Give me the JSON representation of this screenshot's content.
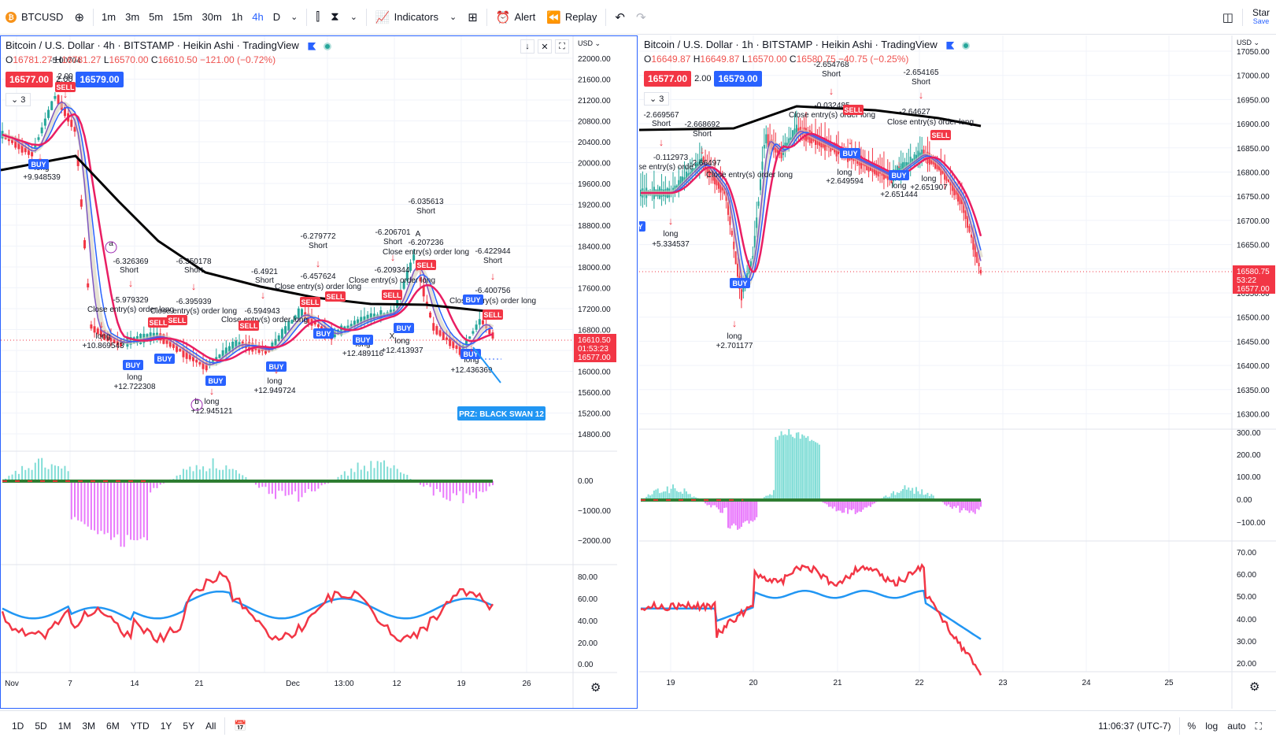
{
  "toolbar": {
    "symbol": "BTCUSD",
    "timeframes": [
      "1m",
      "3m",
      "5m",
      "15m",
      "30m",
      "1h",
      "4h",
      "D"
    ],
    "active_timeframe": "4h",
    "indicators_label": "Indicators",
    "alert_label": "Alert",
    "replay_label": "Replay",
    "star_label": "Star",
    "save_label": "Save"
  },
  "left_pane": {
    "title": "Bitcoin / U.S. Dollar · 4h · BITSTAMP · Heikin Ashi · TradingView",
    "ohlc": {
      "o_label": "O",
      "o": "16781.27",
      "h_label": "H",
      "h": "16781.27",
      "l_label": "L",
      "l": "16570.00",
      "c_label": "C",
      "c": "16610.50",
      "change": "−121.00 (−0.72%)"
    },
    "sell_price": "16577.00",
    "spread": "2.00",
    "buy_price": "16579.00",
    "indicator_count": "3",
    "currency": "USD",
    "last_price": "16610.50",
    "countdown": "01:53:23",
    "bid_price": "16577.00",
    "price_axis": [
      "22000.00",
      "21600.00",
      "21200.00",
      "20800.00",
      "20400.00",
      "20000.00",
      "19600.00",
      "19200.00",
      "18800.00",
      "18400.00",
      "18000.00",
      "17600.00",
      "17200.00",
      "16800.00",
      "16400.00",
      "16000.00",
      "15600.00",
      "15200.00",
      "14800.00"
    ],
    "macd_axis": [
      "0.00",
      "−1000.00",
      "−2000.00"
    ],
    "rsi_axis": [
      "80.00",
      "60.00",
      "40.00",
      "20.00",
      "0.00"
    ],
    "time_axis": [
      "Nov",
      "7",
      "14",
      "21",
      "Dec",
      "13:00",
      "12",
      "19",
      "26"
    ],
    "prz_label": "PRZ: BLACK SWAN 12",
    "annotations": [
      {
        "text": "Short"
      },
      {
        "text": "-5.00704"
      },
      {
        "text": "2.00"
      },
      {
        "text": "long"
      },
      {
        "text": "+9.948539"
      },
      {
        "text": "-6.326369"
      },
      {
        "text": "Short"
      },
      {
        "text": "-5.979329"
      },
      {
        "text": "Close entry(s) order long"
      },
      {
        "text": "long"
      },
      {
        "text": "+10.869543"
      },
      {
        "text": "long"
      },
      {
        "text": "+12.722308"
      },
      {
        "text": "-6.350178"
      },
      {
        "text": "Short"
      },
      {
        "text": "-6.395939"
      },
      {
        "text": "Close entry(s) order long"
      },
      {
        "text": "long"
      },
      {
        "text": "+12.945121"
      },
      {
        "text": "-6.4921"
      },
      {
        "text": "Short"
      },
      {
        "text": "-6.594943"
      },
      {
        "text": "Close entry(s) order long"
      },
      {
        "text": "long"
      },
      {
        "text": "+12.949724"
      },
      {
        "text": "-6.279772"
      },
      {
        "text": "Short"
      },
      {
        "text": "-6.457624"
      },
      {
        "text": "Close entry(s) order long"
      },
      {
        "text": "long"
      },
      {
        "text": "+12.489116"
      },
      {
        "text": "-6.206701"
      },
      {
        "text": "Short"
      },
      {
        "text": "-6.035613"
      },
      {
        "text": "Short"
      },
      {
        "text": "-6.207236"
      },
      {
        "text": "Close entry(s) order long"
      },
      {
        "text": "-6.209344"
      },
      {
        "text": "Close entry(s) order long"
      },
      {
        "text": "long"
      },
      {
        "text": "+12.413937"
      },
      {
        "text": "-6.422944"
      },
      {
        "text": "Short"
      },
      {
        "text": "-6.400756"
      },
      {
        "text": "Close entry(s) order long"
      },
      {
        "text": "long"
      },
      {
        "text": "+12.436369"
      },
      {
        "text": "a"
      },
      {
        "text": "b"
      },
      {
        "text": "A"
      },
      {
        "text": "X"
      }
    ],
    "signals": [
      "BUY",
      "SELL",
      "BUY",
      "BUY",
      "SELL",
      "SELL",
      "BUY",
      "SELL",
      "BUY",
      "SELL",
      "SELL",
      "BUY",
      "BUY",
      "SELL",
      "BUY",
      "BUY",
      "SELL",
      "BUY",
      "SELL"
    ]
  },
  "right_pane": {
    "title": "Bitcoin / U.S. Dollar · 1h · BITSTAMP · Heikin Ashi · TradingView",
    "ohlc": {
      "o_label": "O",
      "o": "16649.87",
      "h_label": "H",
      "h": "16649.87",
      "l_label": "L",
      "l": "16570.00",
      "c_label": "C",
      "c": "16580.75",
      "change": "−40.75 (−0.25%)"
    },
    "sell_price": "16577.00",
    "spread": "2.00",
    "buy_price": "16579.00",
    "indicator_count": "3",
    "currency": "USD",
    "last_price": "16580.75",
    "countdown": "53:22",
    "bid_price": "16577.00",
    "price_axis": [
      "17050.00",
      "17000.00",
      "16950.00",
      "16900.00",
      "16850.00",
      "16800.00",
      "16750.00",
      "16700.00",
      "16650.00",
      "16600.00",
      "16550.00",
      "16500.00",
      "16450.00",
      "16400.00",
      "16350.00",
      "16300.00"
    ],
    "macd_axis": [
      "300.00",
      "200.00",
      "100.00",
      "0.00",
      "−100.00"
    ],
    "rsi_axis": [
      "70.00",
      "60.00",
      "50.00",
      "40.00",
      "30.00",
      "20.00"
    ],
    "time_axis": [
      "19",
      "20",
      "21",
      "22",
      "23",
      "24",
      "25"
    ],
    "annotations": [
      {
        "text": "-2.669567"
      },
      {
        "text": "Short"
      },
      {
        "text": "-2.668692"
      },
      {
        "text": "Short"
      },
      {
        "text": "-0.112973"
      },
      {
        "text": "lose entry(s) orde"
      },
      {
        "text": "-2.66497"
      },
      {
        "text": "Close entry(s) order long"
      },
      {
        "text": "long"
      },
      {
        "text": "+5.334537"
      },
      {
        "text": "long"
      },
      {
        "text": "+2.701177"
      },
      {
        "text": "-2.654768"
      },
      {
        "text": "Short"
      },
      {
        "text": "-0.032485"
      },
      {
        "text": "Close entry(s) order long"
      },
      {
        "text": "long"
      },
      {
        "text": "+2.649594"
      },
      {
        "text": "long"
      },
      {
        "text": "+2.651444"
      },
      {
        "text": "-2.654165"
      },
      {
        "text": "Short"
      },
      {
        "text": "-2.64627"
      },
      {
        "text": "Close entry(s) order long"
      },
      {
        "text": "long"
      },
      {
        "text": "+2.651907"
      }
    ],
    "signals": [
      "BUY",
      "BUY",
      "SELL",
      "BUY",
      "BUY",
      "SELL"
    ]
  },
  "bottombar": {
    "ranges": [
      "1D",
      "5D",
      "1M",
      "3M",
      "6M",
      "YTD",
      "1Y",
      "5Y",
      "All"
    ],
    "clock": "11:06:37 (UTC-7)",
    "percent_label": "%",
    "log_label": "log",
    "auto_label": "auto"
  },
  "colors": {
    "accent": "#2962ff",
    "up": "#26a69a",
    "down": "#f23645",
    "ema_long": "#000000",
    "ema_red": "#e91e63",
    "ema_blue": "#2962ff",
    "rsi_red": "#f23645",
    "rsi_blue": "#2196f3"
  }
}
